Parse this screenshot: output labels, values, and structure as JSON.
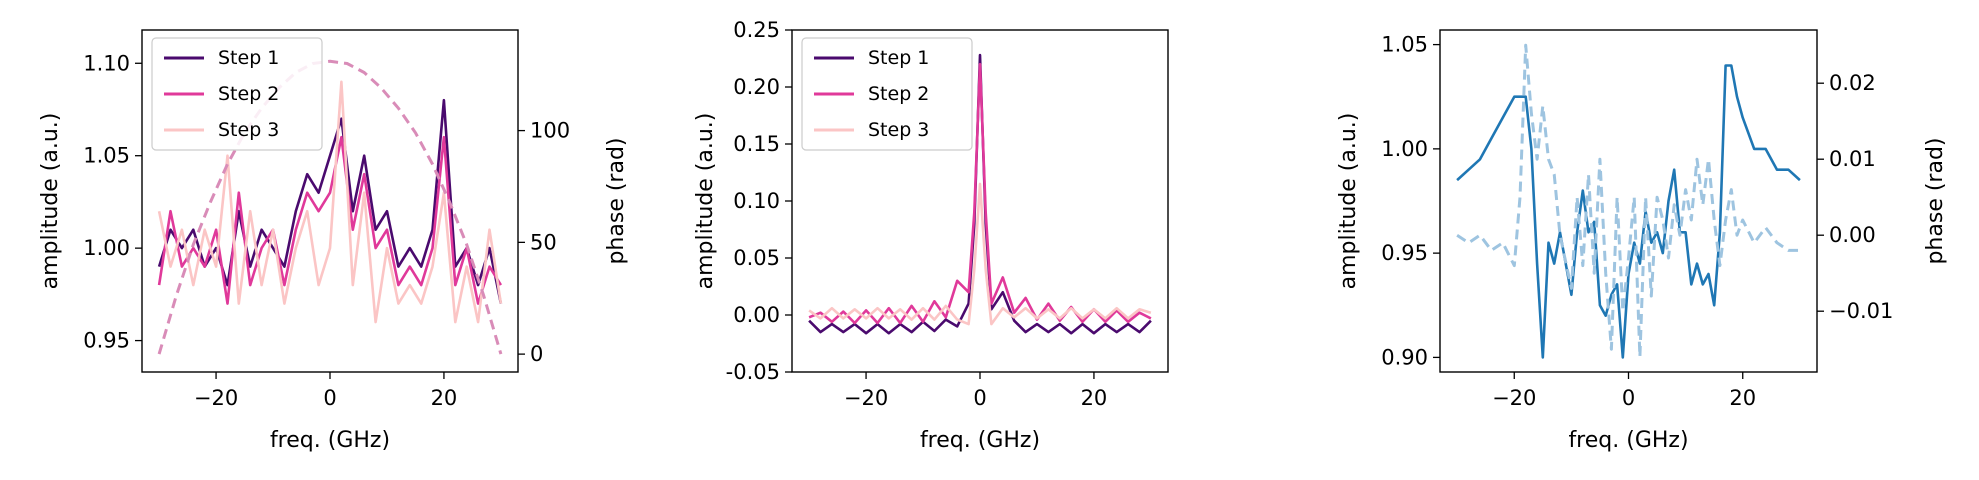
{
  "colors": {
    "step1": "#4a0a6e",
    "step2": "#e0399a",
    "step3": "#fbc5c5",
    "phase_dashed": "#d98cb8",
    "amp_blue": "#1f77b4",
    "phase_blue": "#9ec4e0"
  },
  "chart_data": [
    {
      "type": "line",
      "xlabel": "freq. (GHz)",
      "ylabel": "amplitude (a.u.)",
      "ylabel_right": "phase (rad)",
      "xlim": [
        -33,
        33
      ],
      "ylim": [
        0.933,
        1.118
      ],
      "ylim_right": [
        -8,
        145
      ],
      "x_ticks": [
        -20,
        0,
        20
      ],
      "x_tick_labels": [
        "−20",
        "0",
        "20"
      ],
      "y_ticks": [
        0.95,
        1.0,
        1.05,
        1.1
      ],
      "y_tick_labels": [
        "0.95",
        "1.00",
        "1.05",
        "1.10"
      ],
      "y_right_ticks": [
        0,
        50,
        100
      ],
      "y_right_tick_labels": [
        "0",
        "50",
        "100"
      ],
      "legend": {
        "placement": "top-left",
        "entries": [
          "Step 1",
          "Step 2",
          "Step 3"
        ]
      },
      "grid": false,
      "series": [
        {
          "name": "Step 1",
          "axis": "left",
          "style": "solid",
          "x": [
            -30,
            -28,
            -26,
            -24,
            -22,
            -20,
            -18,
            -16,
            -14,
            -12,
            -10,
            -8,
            -6,
            -4,
            -2,
            0,
            2,
            4,
            6,
            8,
            10,
            12,
            14,
            16,
            18,
            20,
            22,
            24,
            26,
            28,
            30
          ],
          "y": [
            0.99,
            1.01,
            1.0,
            1.01,
            0.99,
            1.0,
            0.98,
            1.02,
            0.99,
            1.01,
            1.0,
            0.99,
            1.02,
            1.04,
            1.03,
            1.05,
            1.07,
            1.02,
            1.05,
            1.01,
            1.02,
            0.99,
            1.0,
            0.99,
            1.01,
            1.08,
            0.99,
            1.0,
            0.98,
            1.0,
            0.97
          ]
        },
        {
          "name": "Step 2",
          "axis": "left",
          "style": "solid",
          "x": [
            -30,
            -28,
            -26,
            -24,
            -22,
            -20,
            -18,
            -16,
            -14,
            -12,
            -10,
            -8,
            -6,
            -4,
            -2,
            0,
            2,
            4,
            6,
            8,
            10,
            12,
            14,
            16,
            18,
            20,
            22,
            24,
            26,
            28,
            30
          ],
          "y": [
            0.98,
            1.02,
            0.99,
            1.0,
            0.99,
            1.01,
            0.97,
            1.03,
            0.98,
            1.0,
            1.01,
            0.98,
            1.01,
            1.03,
            1.02,
            1.03,
            1.06,
            1.01,
            1.04,
            1.0,
            1.01,
            0.98,
            0.99,
            0.98,
            1.0,
            1.06,
            0.98,
            1.0,
            0.97,
            0.99,
            0.98
          ]
        },
        {
          "name": "Step 3",
          "axis": "left",
          "style": "solid",
          "x": [
            -30,
            -28,
            -26,
            -24,
            -22,
            -20,
            -18,
            -16,
            -14,
            -12,
            -10,
            -8,
            -6,
            -4,
            -2,
            0,
            2,
            4,
            6,
            8,
            10,
            12,
            14,
            16,
            18,
            20,
            22,
            24,
            26,
            28,
            30
          ],
          "y": [
            1.02,
            0.99,
            1.01,
            0.98,
            1.01,
            0.99,
            1.05,
            0.97,
            1.02,
            0.98,
            1.01,
            0.97,
            1.0,
            1.02,
            0.98,
            1.0,
            1.09,
            0.98,
            1.03,
            0.96,
            1.0,
            0.97,
            0.98,
            0.97,
            0.99,
            1.03,
            0.96,
            0.99,
            0.96,
            1.01,
            0.97
          ]
        },
        {
          "name": "",
          "axis": "right",
          "style": "dashed",
          "x": [
            -30,
            -27,
            -24,
            -21,
            -18,
            -15,
            -12,
            -9,
            -6,
            -3,
            0,
            3,
            6,
            9,
            12,
            15,
            18,
            21,
            24,
            27,
            30
          ],
          "y": [
            0,
            26,
            49,
            68,
            85,
            99,
            110,
            119,
            126,
            130,
            131,
            130,
            126,
            119,
            110,
            99,
            85,
            68,
            49,
            26,
            0
          ]
        }
      ]
    },
    {
      "type": "line",
      "xlabel": "freq. (GHz)",
      "ylabel": "amplitude (a.u.)",
      "xlim": [
        -33,
        33
      ],
      "ylim": [
        -0.05,
        0.25
      ],
      "x_ticks": [
        -20,
        0,
        20
      ],
      "x_tick_labels": [
        "−20",
        "0",
        "20"
      ],
      "y_ticks": [
        -0.05,
        0.0,
        0.05,
        0.1,
        0.15,
        0.2,
        0.25
      ],
      "y_tick_labels": [
        "-0.05",
        "0.00",
        "0.05",
        "0.10",
        "0.15",
        "0.20",
        "0.25"
      ],
      "legend": {
        "placement": "top-left",
        "entries": [
          "Step 1",
          "Step 2",
          "Step 3"
        ]
      },
      "grid": false,
      "series": [
        {
          "name": "Step 1",
          "axis": "left",
          "style": "solid",
          "x": [
            -30,
            -28,
            -26,
            -24,
            -22,
            -20,
            -18,
            -16,
            -14,
            -12,
            -10,
            -8,
            -6,
            -4,
            -2,
            -1,
            0,
            1,
            2,
            4,
            6,
            8,
            10,
            12,
            14,
            16,
            18,
            20,
            22,
            24,
            26,
            28,
            30
          ],
          "y": [
            -0.005,
            -0.015,
            -0.008,
            -0.015,
            -0.008,
            -0.016,
            -0.008,
            -0.016,
            -0.008,
            -0.015,
            -0.006,
            -0.014,
            -0.004,
            -0.01,
            0.01,
            0.08,
            0.228,
            0.08,
            0.005,
            0.02,
            -0.005,
            -0.015,
            -0.008,
            -0.015,
            -0.008,
            -0.016,
            -0.008,
            -0.016,
            -0.008,
            -0.015,
            -0.008,
            -0.015,
            -0.005
          ]
        },
        {
          "name": "Step 2",
          "axis": "left",
          "style": "solid",
          "x": [
            -30,
            -28,
            -26,
            -24,
            -22,
            -20,
            -18,
            -16,
            -14,
            -12,
            -10,
            -8,
            -6,
            -4,
            -2,
            -1,
            0,
            1,
            2,
            4,
            6,
            8,
            10,
            12,
            14,
            16,
            18,
            20,
            22,
            24,
            26,
            28,
            30
          ],
          "y": [
            -0.002,
            0.002,
            -0.006,
            0.003,
            -0.007,
            0.004,
            -0.007,
            0.006,
            -0.007,
            0.008,
            -0.006,
            0.012,
            -0.002,
            0.03,
            0.02,
            0.09,
            0.22,
            0.09,
            0.01,
            0.033,
            0.002,
            0.015,
            -0.004,
            0.01,
            -0.005,
            0.007,
            -0.006,
            0.005,
            -0.006,
            0.004,
            -0.006,
            0.002,
            -0.003
          ]
        },
        {
          "name": "Step 3",
          "axis": "left",
          "style": "solid",
          "x": [
            -30,
            -28,
            -26,
            -24,
            -22,
            -20,
            -18,
            -16,
            -14,
            -12,
            -10,
            -8,
            -6,
            -4,
            -2,
            -1,
            0,
            1,
            2,
            4,
            6,
            8,
            10,
            12,
            14,
            16,
            18,
            20,
            22,
            24,
            26,
            28,
            30
          ],
          "y": [
            0.004,
            -0.003,
            0.006,
            -0.003,
            0.005,
            -0.003,
            0.006,
            -0.003,
            0.005,
            -0.004,
            0.006,
            -0.004,
            0.008,
            -0.004,
            -0.008,
            0.04,
            0.115,
            0.04,
            -0.008,
            0.006,
            -0.002,
            0.006,
            -0.003,
            0.005,
            -0.003,
            0.006,
            -0.003,
            0.005,
            -0.003,
            0.006,
            -0.003,
            0.005,
            0.002
          ]
        }
      ]
    },
    {
      "type": "line",
      "xlabel": "freq. (GHz)",
      "ylabel": "amplitude (a.u.)",
      "ylabel_right": "phase (rad)",
      "xlim": [
        -33,
        33
      ],
      "ylim": [
        0.893,
        1.057
      ],
      "ylim_right": [
        -0.018,
        0.027
      ],
      "x_ticks": [
        -20,
        0,
        20
      ],
      "x_tick_labels": [
        "−20",
        "0",
        "20"
      ],
      "y_ticks": [
        0.9,
        0.95,
        1.0,
        1.05
      ],
      "y_tick_labels": [
        "0.90",
        "0.95",
        "1.00",
        "1.05"
      ],
      "y_right_ticks": [
        -0.01,
        0.0,
        0.01,
        0.02
      ],
      "y_right_tick_labels": [
        "−0.01",
        "0.00",
        "0.01",
        "0.02"
      ],
      "grid": false,
      "series": [
        {
          "name": "",
          "axis": "left",
          "style": "solid",
          "x": [
            -30,
            -28,
            -26,
            -24,
            -22,
            -20,
            -18,
            -17,
            -16,
            -15,
            -14,
            -13,
            -12,
            -10,
            -9,
            -8,
            -7,
            -6,
            -5,
            -4,
            -3,
            -2,
            -1,
            0,
            1,
            2,
            3,
            4,
            5,
            6,
            7,
            8,
            9,
            10,
            11,
            12,
            13,
            14,
            15,
            16,
            17,
            18,
            19,
            20,
            22,
            24,
            26,
            28,
            30
          ],
          "y": [
            0.985,
            0.99,
            0.995,
            1.005,
            1.015,
            1.025,
            1.025,
            1.0,
            0.945,
            0.9,
            0.955,
            0.945,
            0.96,
            0.93,
            0.96,
            0.98,
            0.96,
            0.965,
            0.925,
            0.92,
            0.93,
            0.935,
            0.9,
            0.94,
            0.955,
            0.945,
            0.97,
            0.955,
            0.96,
            0.95,
            0.975,
            0.99,
            0.96,
            0.96,
            0.935,
            0.945,
            0.935,
            0.94,
            0.925,
            0.96,
            1.04,
            1.04,
            1.025,
            1.015,
            1.0,
            1.0,
            0.99,
            0.99,
            0.985
          ]
        },
        {
          "name": "",
          "axis": "right",
          "style": "dashed",
          "x": [
            -30,
            -28,
            -26,
            -24,
            -22,
            -20,
            -19,
            -18,
            -17,
            -16,
            -15,
            -14,
            -13,
            -12,
            -10,
            -9,
            -8,
            -7,
            -6,
            -5,
            -4,
            -3,
            -2,
            -1,
            0,
            1,
            2,
            3,
            4,
            5,
            6,
            7,
            8,
            9,
            10,
            11,
            12,
            13,
            14,
            15,
            16,
            17,
            18,
            19,
            20,
            22,
            24,
            26,
            28,
            30
          ],
          "y": [
            0.0,
            -0.001,
            0.0,
            -0.002,
            -0.001,
            -0.004,
            0.005,
            0.025,
            0.016,
            0.01,
            0.017,
            0.01,
            0.008,
            0.0,
            -0.007,
            0.005,
            -0.004,
            0.008,
            -0.005,
            0.01,
            -0.005,
            -0.015,
            0.005,
            -0.01,
            -0.003,
            0.005,
            -0.016,
            0.005,
            -0.008,
            0.005,
            0.002,
            -0.003,
            0.004,
            0.0,
            0.006,
            0.002,
            0.01,
            0.004,
            0.01,
            0.002,
            -0.004,
            0.002,
            0.006,
            0.0,
            0.002,
            -0.001,
            0.001,
            -0.001,
            -0.002,
            -0.002
          ]
        }
      ]
    }
  ]
}
